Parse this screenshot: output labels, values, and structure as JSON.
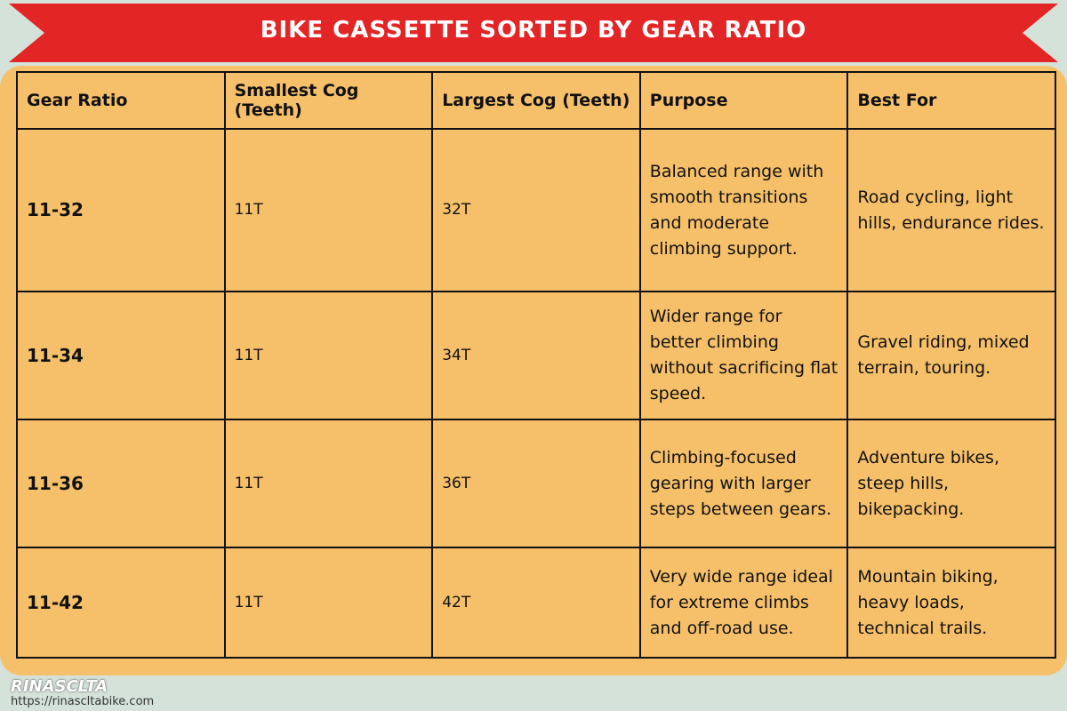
{
  "header": {
    "title": "BIKE CASSETTE SORTED BY GEAR RATIO"
  },
  "table": {
    "columns": [
      "Gear Ratio",
      "Smallest Cog (Teeth)",
      "Largest Cog (Teeth)",
      "Purpose",
      "Best For"
    ],
    "rows": [
      [
        "11-32",
        "11T",
        "32T",
        "Balanced range with smooth transitions and moderate climbing support.",
        "Road cycling, light hills, endurance rides."
      ],
      [
        "11-34",
        "11T",
        "34T",
        "Wider range for better climbing without sacrificing flat speed.",
        "Gravel riding, mixed terrain, touring."
      ],
      [
        "11-36",
        "11T",
        "36T",
        "Climbing-focused gearing with larger steps between gears.",
        "Adventure bikes, steep hills, bikepacking."
      ],
      [
        "11-42",
        "11T",
        "42T",
        "Very wide range ideal for extreme climbs and off-road use.",
        "Mountain biking, heavy loads, technical trails."
      ]
    ]
  },
  "footer": {
    "brand": "RINASCLTA",
    "url": "https://rinascltabike.com"
  }
}
